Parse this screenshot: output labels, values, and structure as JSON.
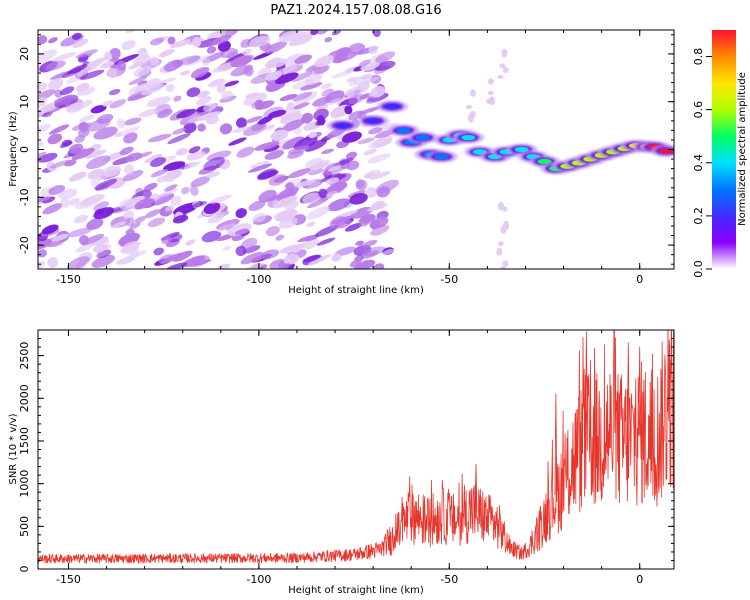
{
  "title": "PAZ1.2024.157.08.08.G16",
  "colors": {
    "snr_line": "#e8352c",
    "blob_light": "#e4cbf5",
    "blob_mid": "#b77ae8",
    "blob_dark": "#7a1fd8",
    "colormap": [
      "#ffffff",
      "#8a00ff",
      "#3f2bff",
      "#0078ff",
      "#00e0ff",
      "#00ff60",
      "#b0ff00",
      "#ffe600",
      "#ff8a00",
      "#ff1030"
    ]
  },
  "chart_data": [
    {
      "type": "heatmap",
      "name": "spectrogram",
      "xlabel": "Height of straight line (km)",
      "ylabel": "Frequency (Hz)",
      "xlim": [
        -158,
        9
      ],
      "ylim": [
        -25,
        25
      ],
      "xticks": [
        -150,
        -100,
        -50,
        0
      ],
      "yticks": [
        -20,
        -10,
        0,
        10,
        20
      ],
      "colorbar": {
        "label": "Normalized spectral amplitude",
        "range": [
          0.0,
          0.9
        ],
        "ticks": [
          0.0,
          0.2,
          0.4,
          0.6,
          0.8
        ]
      },
      "ridge": [
        {
          "x": -78,
          "y": 5,
          "v": 0.18
        },
        {
          "x": -70,
          "y": 6,
          "v": 0.22
        },
        {
          "x": -65,
          "y": 9,
          "v": 0.2
        },
        {
          "x": -62,
          "y": 4,
          "v": 0.25
        },
        {
          "x": -60,
          "y": 1.5,
          "v": 0.32
        },
        {
          "x": -57,
          "y": 2.5,
          "v": 0.3
        },
        {
          "x": -55,
          "y": -1,
          "v": 0.35
        },
        {
          "x": -52,
          "y": -1.5,
          "v": 0.3
        },
        {
          "x": -50,
          "y": 2,
          "v": 0.38
        },
        {
          "x": -47,
          "y": 3,
          "v": 0.42
        },
        {
          "x": -45,
          "y": 2.5,
          "v": 0.4
        },
        {
          "x": -42,
          "y": -0.5,
          "v": 0.38
        },
        {
          "x": -38,
          "y": -1.5,
          "v": 0.4
        },
        {
          "x": -35,
          "y": -0.5,
          "v": 0.36
        },
        {
          "x": -31,
          "y": 0,
          "v": 0.4
        },
        {
          "x": -28,
          "y": -1.5,
          "v": 0.42
        },
        {
          "x": -25,
          "y": -2.5,
          "v": 0.45
        },
        {
          "x": -22,
          "y": -4,
          "v": 0.5
        },
        {
          "x": -19,
          "y": -3.5,
          "v": 0.55
        },
        {
          "x": -16,
          "y": -2.8,
          "v": 0.6
        },
        {
          "x": -13,
          "y": -2,
          "v": 0.58
        },
        {
          "x": -10,
          "y": -1.2,
          "v": 0.55
        },
        {
          "x": -7,
          "y": -0.5,
          "v": 0.55
        },
        {
          "x": -4,
          "y": 0.2,
          "v": 0.62
        },
        {
          "x": -1,
          "y": 0.8,
          "v": 0.68
        },
        {
          "x": 2,
          "y": 0.6,
          "v": 0.78
        },
        {
          "x": 4,
          "y": 0.5,
          "v": 0.9
        },
        {
          "x": 7,
          "y": -0.3,
          "v": 0.85
        }
      ]
    },
    {
      "type": "line",
      "name": "snr",
      "xlabel": "Height of straight line (km)",
      "ylabel": "SNR (10 * v/v)",
      "xlim": [
        -158,
        9
      ],
      "ylim": [
        0,
        2800
      ],
      "xticks": [
        -150,
        -100,
        -50,
        0
      ],
      "yticks": [
        0,
        500,
        1000,
        1500,
        2000,
        2500
      ],
      "envelope": [
        {
          "x": -158,
          "y": 120
        },
        {
          "x": -120,
          "y": 125
        },
        {
          "x": -90,
          "y": 130
        },
        {
          "x": -75,
          "y": 170
        },
        {
          "x": -68,
          "y": 230
        },
        {
          "x": -63,
          "y": 450
        },
        {
          "x": -60,
          "y": 650
        },
        {
          "x": -56,
          "y": 550
        },
        {
          "x": -52,
          "y": 620
        },
        {
          "x": -48,
          "y": 560
        },
        {
          "x": -44,
          "y": 700
        },
        {
          "x": -40,
          "y": 580
        },
        {
          "x": -37,
          "y": 500
        },
        {
          "x": -34,
          "y": 250
        },
        {
          "x": -31,
          "y": 180
        },
        {
          "x": -29,
          "y": 260
        },
        {
          "x": -26,
          "y": 500
        },
        {
          "x": -23,
          "y": 800
        },
        {
          "x": -20,
          "y": 1000
        },
        {
          "x": -17,
          "y": 1300
        },
        {
          "x": -14,
          "y": 1500
        },
        {
          "x": -11,
          "y": 1500
        },
        {
          "x": -8,
          "y": 1600
        },
        {
          "x": -5,
          "y": 1500
        },
        {
          "x": -2,
          "y": 1500
        },
        {
          "x": 1,
          "y": 1600
        },
        {
          "x": 4,
          "y": 1450
        },
        {
          "x": 7,
          "y": 1900
        },
        {
          "x": 9,
          "y": 2000
        }
      ],
      "peaks": [
        {
          "x": -14,
          "y": 2780
        },
        {
          "x": -3,
          "y": 2650
        },
        {
          "x": 0,
          "y": 2600
        },
        {
          "x": 8,
          "y": 2450
        },
        {
          "x": -22,
          "y": 2050
        },
        {
          "x": -43,
          "y": 1230
        }
      ]
    }
  ]
}
